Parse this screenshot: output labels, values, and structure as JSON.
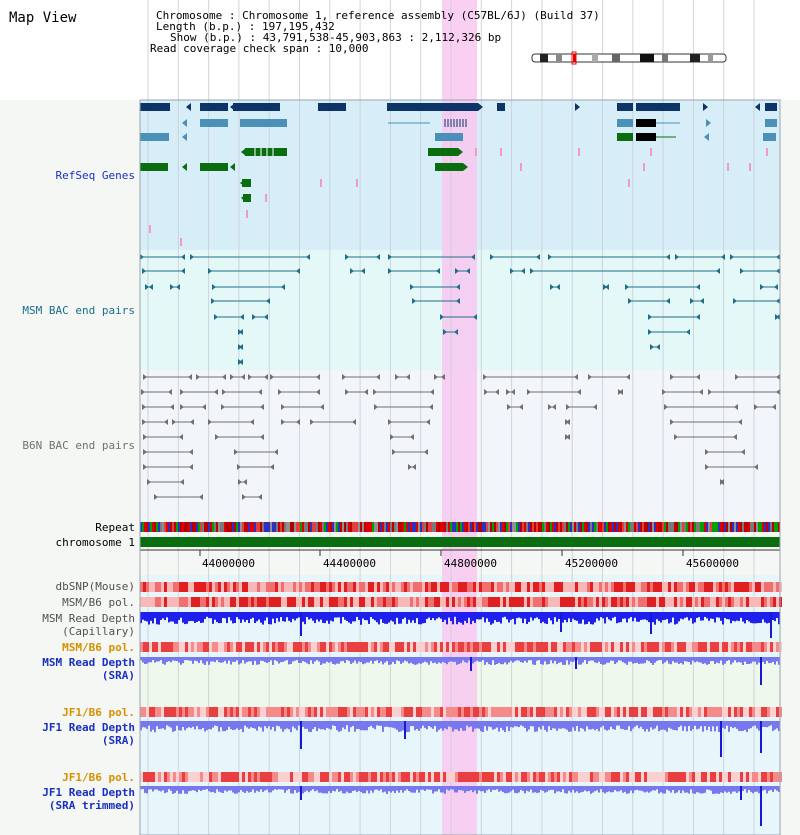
{
  "title": "Map View",
  "info": {
    "chromosome_line": "Chromosome     : Chromosome 1, reference assembly (C57BL/6J) (Build 37)",
    "length_line": "Length (b.p.) : 197,195,432",
    "show_line": "Show (b.p.) : 43,791,538-45,903,863 : 2,112,326 bp",
    "span_line": "Read coverage check span : 10,000"
  },
  "tracks": {
    "refseq": "RefSeq Genes",
    "msm_bac": "MSM BAC end pairs",
    "b6n_bac": "B6N BAC end pairs",
    "repeat": "Repeat",
    "chromosome": "chromosome 1",
    "dbsnp": "dbSNP(Mouse)",
    "msm_b6_pol_1": "MSM/B6 pol.",
    "msm_read_cap_1": "MSM Read Depth",
    "msm_read_cap_2": "(Capillary)",
    "msm_b6_pol_2": "MSM/B6 pol.",
    "msm_read_sra_1": "MSM Read Depth",
    "msm_read_sra_2": "(SRA)",
    "jf1_b6_pol_1": "JF1/B6 pol.",
    "jf1_read_sra_1": "JF1 Read Depth",
    "jf1_read_sra_2": "(SRA)",
    "jf1_b6_pol_2": "JF1/B6 pol.",
    "jf1_read_trim_1": "JF1 Read Depth",
    "jf1_read_trim_2": "(SRA trimmed)"
  },
  "axis": {
    "ticks": [
      "44000000",
      "44400000",
      "44800000",
      "45200000",
      "45600000"
    ]
  },
  "colors": {
    "refseq_bg": "#d7eef8",
    "msm_bg": "#e4f8f8",
    "b6n_bg": "#f2f5fa",
    "highlight": "#f8c8f0",
    "navy": "#0c3468",
    "steel": "#4a90b8",
    "green": "#0a6e10",
    "pink": "#f39ac4",
    "teal": "#1f6e8a",
    "gray": "#707070",
    "blue": "#2020ee",
    "lightblue": "#7878ee"
  }
}
